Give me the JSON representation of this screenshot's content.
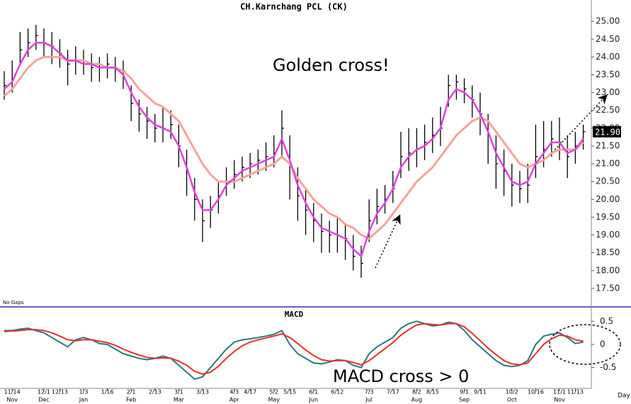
{
  "chart_data": [
    {
      "type": "ohlc",
      "title": "CH.Karnchang PCL (CK)",
      "annotation": "Golden cross!",
      "note": "No Gaps",
      "ylim": [
        17.0,
        25.6
      ],
      "yticks": [
        {
          "value": 25,
          "label": "25.00"
        },
        {
          "value": 24.5,
          "label": "24.50"
        },
        {
          "value": 24,
          "label": "24.00"
        },
        {
          "value": 23.5,
          "label": "23.50"
        },
        {
          "value": 23,
          "label": "23.00"
        },
        {
          "value": 22.5,
          "label": "22.50"
        },
        {
          "value": 22,
          "label": "22.00"
        },
        {
          "value": 21.5,
          "label": "21.50"
        },
        {
          "value": 21,
          "label": "21.00"
        },
        {
          "value": 20.5,
          "label": "20.50"
        },
        {
          "value": 20,
          "label": "20.00"
        },
        {
          "value": 19.5,
          "label": "19.50"
        },
        {
          "value": 19,
          "label": "19.00"
        },
        {
          "value": 18.5,
          "label": "18.50"
        },
        {
          "value": 18,
          "label": "18.00"
        },
        {
          "value": 17.5,
          "label": "17.50"
        }
      ],
      "last_value": {
        "value": 21.9,
        "label": "21.90"
      },
      "bar_color": "#000000",
      "high": [
        23.6,
        23.9,
        24.7,
        24.8,
        24.9,
        24.8,
        24.7,
        24.5,
        24.2,
        24.3,
        24.2,
        24.1,
        24.0,
        24.1,
        24.0,
        23.9,
        23.2,
        22.8,
        22.6,
        22.4,
        22.6,
        22.5,
        22.1,
        21.4,
        20.6,
        20.0,
        20.1,
        20.5,
        20.9,
        21.1,
        21.2,
        21.3,
        21.4,
        21.6,
        21.8,
        22.5,
        21.8,
        20.9,
        20.3,
        19.9,
        19.6,
        19.4,
        19.5,
        19.3,
        19.0,
        18.7,
        20.0,
        20.3,
        20.4,
        20.8,
        21.9,
        22.0,
        22.0,
        22.1,
        22.3,
        22.6,
        23.5,
        23.5,
        23.4,
        23.2,
        23.0,
        22.4,
        21.8,
        21.4,
        21.0,
        20.8,
        21.0,
        22.1,
        22.2,
        22.2,
        22.3,
        21.8,
        21.9,
        22.1
      ],
      "low": [
        22.8,
        23.0,
        23.8,
        24.0,
        24.2,
        24.0,
        23.8,
        23.7,
        23.2,
        23.5,
        23.5,
        23.3,
        23.3,
        23.4,
        23.3,
        23.1,
        22.2,
        21.9,
        21.7,
        21.6,
        21.6,
        21.7,
        20.9,
        20.1,
        19.4,
        18.8,
        19.2,
        19.6,
        20.1,
        20.3,
        20.5,
        20.6,
        20.7,
        20.8,
        20.9,
        21.2,
        20.0,
        19.4,
        19.0,
        18.8,
        18.5,
        18.5,
        18.5,
        18.3,
        18.0,
        17.8,
        18.8,
        19.3,
        19.6,
        19.9,
        20.6,
        20.8,
        20.9,
        21.1,
        21.3,
        21.5,
        22.6,
        22.8,
        22.7,
        22.3,
        21.8,
        21.0,
        20.3,
        20.1,
        19.8,
        19.9,
        19.9,
        20.6,
        20.9,
        21.2,
        21.1,
        20.6,
        21.0,
        21.4
      ],
      "close": [
        23.2,
        23.4,
        24.2,
        24.4,
        24.6,
        24.4,
        24.3,
        24.1,
        23.8,
        23.9,
        23.9,
        23.7,
        23.7,
        23.8,
        23.7,
        23.6,
        22.7,
        22.4,
        22.2,
        22.0,
        22.0,
        22.1,
        21.5,
        20.8,
        20.0,
        19.4,
        19.7,
        20.1,
        20.5,
        20.7,
        20.9,
        21.0,
        21.1,
        21.2,
        21.3,
        22.0,
        21.0,
        20.1,
        19.7,
        19.4,
        19.1,
        19.0,
        19.0,
        18.9,
        18.4,
        18.2,
        19.4,
        19.8,
        20.0,
        20.3,
        21.2,
        21.3,
        21.4,
        21.6,
        21.8,
        22.0,
        23.2,
        23.3,
        23.1,
        22.8,
        22.4,
        21.8,
        21.0,
        20.8,
        20.4,
        20.3,
        20.4,
        21.2,
        21.4,
        21.7,
        21.6,
        21.2,
        21.5,
        21.9
      ],
      "series": [
        {
          "color": "#f4a49c",
          "values": [
            22.9,
            23.1,
            23.4,
            23.7,
            23.9,
            24.0,
            24.0,
            24.0,
            23.9,
            23.9,
            23.9,
            23.8,
            23.8,
            23.7,
            23.7,
            23.6,
            23.4,
            23.1,
            22.9,
            22.7,
            22.6,
            22.4,
            22.2,
            21.8,
            21.4,
            21.0,
            20.7,
            20.5,
            20.5,
            20.5,
            20.6,
            20.7,
            20.8,
            20.9,
            21.0,
            21.2,
            21.0,
            20.6,
            20.3,
            20.0,
            19.8,
            19.6,
            19.5,
            19.3,
            19.2,
            19.0,
            18.9,
            19.1,
            19.3,
            19.6,
            19.9,
            20.2,
            20.5,
            20.7,
            20.9,
            21.2,
            21.5,
            21.8,
            22.0,
            22.2,
            22.3,
            22.2,
            21.9,
            21.6,
            21.3,
            21.0,
            20.9,
            21.0,
            21.1,
            21.3,
            21.4,
            21.4,
            21.4,
            21.6
          ]
        },
        {
          "color": "#e040e0",
          "values": [
            23.1,
            23.3,
            23.8,
            24.2,
            24.4,
            24.4,
            24.3,
            24.1,
            23.9,
            23.9,
            23.8,
            23.8,
            23.7,
            23.7,
            23.7,
            23.5,
            23.0,
            22.6,
            22.3,
            22.1,
            22.0,
            21.9,
            21.5,
            20.9,
            20.2,
            19.7,
            19.7,
            20.0,
            20.4,
            20.6,
            20.8,
            20.9,
            21.0,
            21.1,
            21.2,
            21.7,
            21.1,
            20.4,
            19.9,
            19.5,
            19.2,
            19.1,
            19.0,
            18.9,
            18.6,
            18.4,
            19.1,
            19.6,
            19.9,
            20.3,
            20.9,
            21.2,
            21.4,
            21.5,
            21.7,
            22.0,
            22.8,
            23.1,
            23.0,
            22.8,
            22.4,
            21.9,
            21.3,
            20.9,
            20.5,
            20.4,
            20.5,
            21.0,
            21.3,
            21.6,
            21.6,
            21.3,
            21.4,
            21.7
          ]
        }
      ]
    },
    {
      "type": "line",
      "title": "MACD",
      "annotation": "MACD cross > 0",
      "x_label": "Day",
      "ylim": [
        -0.95,
        0.75
      ],
      "yticks": [
        0.5,
        0,
        -0.5
      ],
      "categories": [
        null,
        "11/14",
        null,
        null,
        null,
        "12/1",
        null,
        "12/13",
        null,
        null,
        "1/3",
        null,
        null,
        "1/16",
        null,
        null,
        "2/1",
        null,
        null,
        "2/13",
        null,
        null,
        "3/1",
        null,
        null,
        "3/13",
        null,
        null,
        null,
        "4/3",
        null,
        "4/17",
        null,
        null,
        "5/2",
        null,
        "5/15",
        null,
        null,
        "6/1",
        null,
        null,
        "6/12",
        null,
        null,
        null,
        "7/3",
        null,
        null,
        "7/17",
        null,
        null,
        "8/2",
        null,
        "8/15",
        null,
        null,
        null,
        "9/1",
        null,
        "9/11",
        null,
        null,
        null,
        "10/2",
        null,
        null,
        "10/16",
        null,
        null,
        "11/1",
        null,
        "11/13",
        null
      ],
      "months": [
        null,
        "Nov",
        null,
        null,
        null,
        "Dec",
        null,
        null,
        null,
        null,
        "Jan",
        null,
        null,
        null,
        null,
        null,
        "Feb",
        null,
        null,
        null,
        null,
        null,
        "Mar",
        null,
        null,
        null,
        null,
        null,
        null,
        "Apr",
        null,
        null,
        null,
        null,
        "May",
        null,
        null,
        null,
        null,
        "Jun",
        null,
        null,
        null,
        null,
        null,
        null,
        "Jul",
        null,
        null,
        null,
        null,
        null,
        "Aug",
        null,
        null,
        null,
        null,
        null,
        "Sep",
        null,
        null,
        null,
        null,
        null,
        "Oct",
        null,
        null,
        null,
        null,
        null,
        "Nov",
        null,
        null,
        null
      ],
      "series": [
        {
          "color": "#2a7680",
          "values": [
            0.3,
            0.3,
            0.33,
            0.35,
            0.3,
            0.25,
            0.15,
            0.05,
            -0.05,
            0.1,
            0.15,
            0.1,
            0.02,
            0.0,
            -0.1,
            -0.2,
            -0.25,
            -0.3,
            -0.33,
            -0.3,
            -0.25,
            -0.3,
            -0.45,
            -0.6,
            -0.75,
            -0.7,
            -0.5,
            -0.3,
            -0.1,
            0.05,
            0.1,
            0.12,
            0.15,
            0.18,
            0.22,
            0.3,
            0.0,
            -0.2,
            -0.3,
            -0.4,
            -0.42,
            -0.38,
            -0.33,
            -0.35,
            -0.45,
            -0.5,
            -0.2,
            -0.05,
            0.05,
            0.15,
            0.35,
            0.45,
            0.5,
            0.45,
            0.4,
            0.42,
            0.48,
            0.45,
            0.3,
            0.1,
            -0.05,
            -0.2,
            -0.35,
            -0.45,
            -0.48,
            -0.45,
            -0.35,
            0.0,
            0.18,
            0.22,
            0.25,
            0.15,
            0.02,
            0.05
          ]
        },
        {
          "color": "#e8302a",
          "values": [
            0.28,
            0.29,
            0.3,
            0.32,
            0.32,
            0.3,
            0.25,
            0.18,
            0.1,
            0.08,
            0.1,
            0.1,
            0.07,
            0.04,
            -0.02,
            -0.1,
            -0.17,
            -0.23,
            -0.28,
            -0.3,
            -0.29,
            -0.3,
            -0.36,
            -0.45,
            -0.58,
            -0.64,
            -0.6,
            -0.47,
            -0.3,
            -0.15,
            -0.03,
            0.05,
            0.1,
            0.14,
            0.18,
            0.23,
            0.15,
            0.02,
            -0.12,
            -0.24,
            -0.33,
            -0.36,
            -0.35,
            -0.35,
            -0.39,
            -0.44,
            -0.35,
            -0.22,
            -0.09,
            0.04,
            0.2,
            0.32,
            0.42,
            0.45,
            0.43,
            0.42,
            0.45,
            0.45,
            0.38,
            0.24,
            0.08,
            -0.08,
            -0.22,
            -0.35,
            -0.42,
            -0.44,
            -0.4,
            -0.2,
            0.0,
            0.12,
            0.2,
            0.18,
            0.1,
            0.07
          ]
        }
      ]
    }
  ]
}
